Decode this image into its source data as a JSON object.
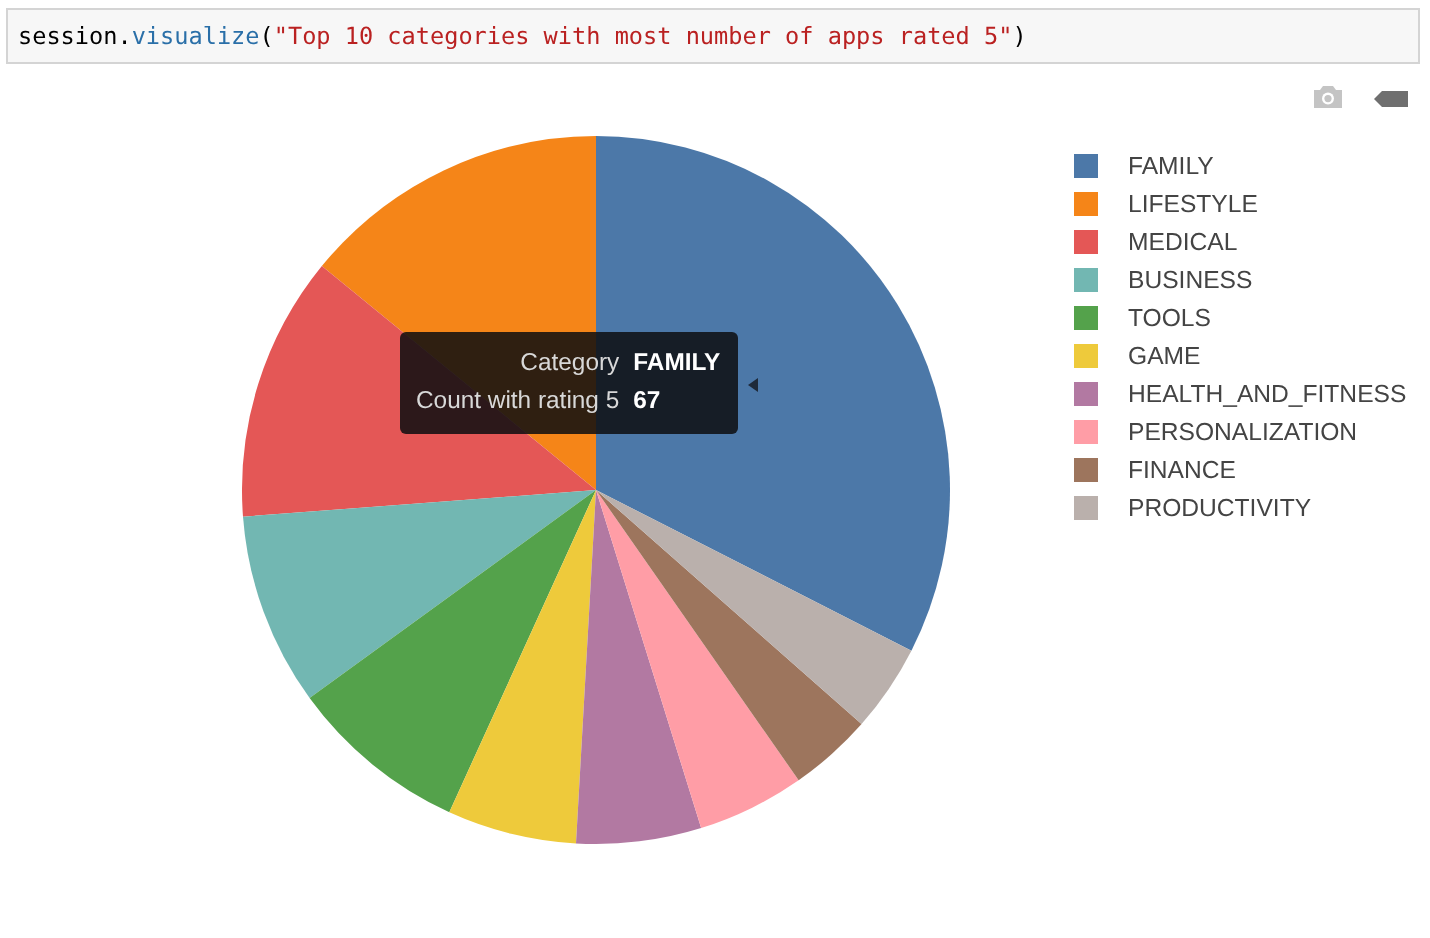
{
  "chart_data": {
    "type": "pie",
    "title": "session.visualize(\"Top 10 categories with most number of apps rated 5\")",
    "categories": [
      "FAMILY",
      "LIFESTYLE",
      "MEDICAL",
      "BUSINESS",
      "TOOLS",
      "GAME",
      "HEALTH_AND_FITNESS",
      "PERSONALIZATION",
      "FINANCE",
      "PRODUCTIVITY"
    ],
    "values": [
      32.5,
      14.1,
      12.1,
      8.8,
      8.2,
      5.9,
      5.7,
      4.9,
      3.8,
      4.0
    ],
    "colors": [
      "#4c78a8",
      "#f58518",
      "#e45756",
      "#72b7b2",
      "#54a24b",
      "#eeca3b",
      "#b279a2",
      "#ff9da6",
      "#9d755d",
      "#bab0ac"
    ],
    "legend": "top right",
    "annotations": [
      "Category FAMILY",
      "Count with rating 5 67"
    ]
  }
}
